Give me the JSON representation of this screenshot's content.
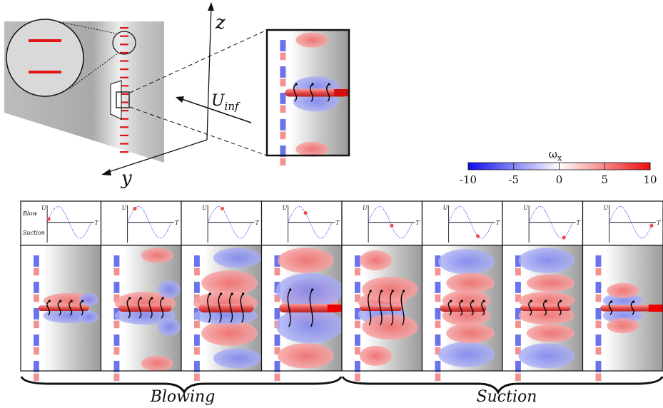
{
  "schematic": {
    "axis_z": "z",
    "axis_y": "y",
    "velocity_label": "U",
    "velocity_subscript": "inf"
  },
  "colorbar": {
    "title": "ω",
    "title_subscript": "x",
    "ticks": [
      "-10",
      "-5",
      "0",
      "5",
      "10"
    ],
    "min": -10,
    "max": 10,
    "colors": {
      "negative": "#1010ee",
      "zero": "#ffffff",
      "positive": "#ee1010"
    }
  },
  "phase_plot": {
    "y_label": "U",
    "x_label": "T",
    "upper_label": "Blow",
    "lower_label": "Suction",
    "phases": [
      0.05,
      0.25,
      0.5,
      0.6,
      0.8,
      1.0,
      1.2,
      1.45
    ]
  },
  "groups": {
    "blowing_label": "Blowing",
    "suction_label": "Suction"
  }
}
